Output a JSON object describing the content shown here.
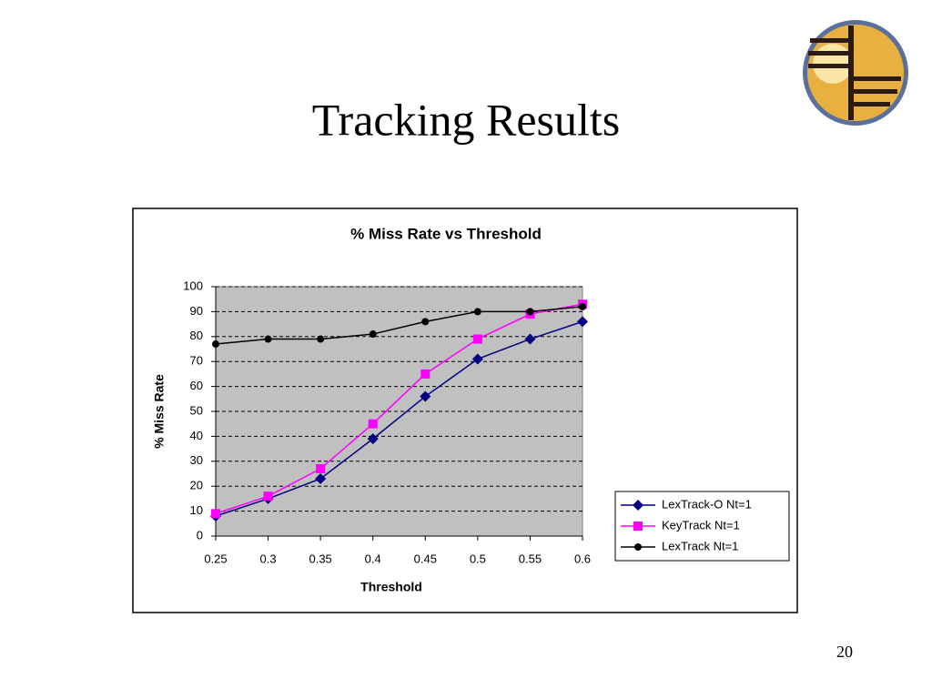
{
  "slide": {
    "title": "Tracking Results",
    "page_number": 20
  },
  "chart_data": {
    "type": "line",
    "title": "% Miss Rate vs Threshold",
    "x_label": "Threshold",
    "y_label": "% Miss Rate",
    "x": [
      0.25,
      0.3,
      0.35,
      0.4,
      0.45,
      0.5,
      0.55,
      0.6
    ],
    "xlim": [
      0.25,
      0.6
    ],
    "xticks": [
      0.25,
      0.3,
      0.35,
      0.4,
      0.45,
      0.5,
      0.55,
      0.6
    ],
    "ylim": [
      0,
      100
    ],
    "yticks": [
      0,
      10,
      20,
      30,
      40,
      50,
      60,
      70,
      80,
      90,
      100
    ],
    "grid": true,
    "legend": "right",
    "series": [
      {
        "name": "LexTrack-O Nt=1",
        "color": "#000080",
        "marker": "diamond",
        "values": [
          8,
          15,
          23,
          39,
          56,
          71,
          79,
          86
        ]
      },
      {
        "name": "KeyTrack Nt=1",
        "color": "#ff00ff",
        "marker": "square",
        "values": [
          9,
          16,
          27,
          45,
          65,
          79,
          89,
          93
        ]
      },
      {
        "name": "LexTrack Nt=1",
        "color": "#000000",
        "marker": "circle",
        "values": [
          77,
          79,
          79,
          81,
          86,
          90,
          90,
          92
        ]
      }
    ]
  }
}
